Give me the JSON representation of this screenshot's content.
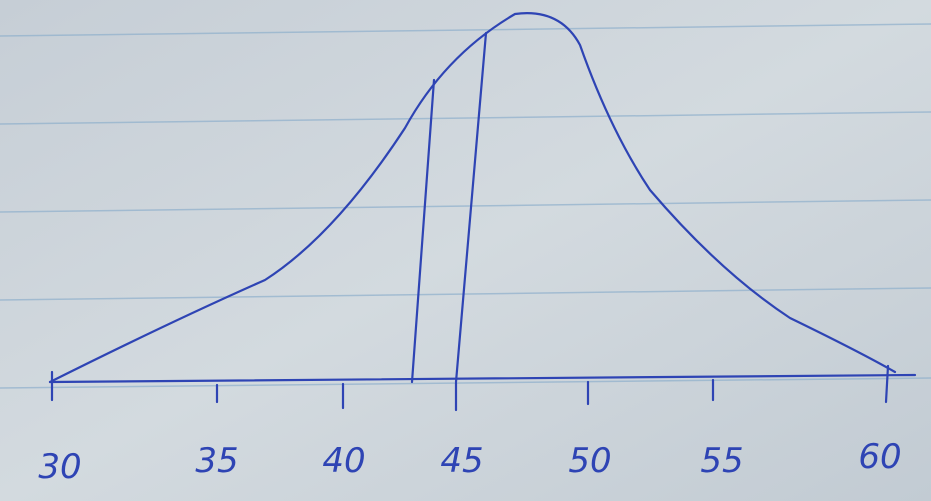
{
  "axis": {
    "tick_labels": [
      "30",
      "35",
      "40",
      "45",
      "50",
      "55",
      "60"
    ]
  }
}
